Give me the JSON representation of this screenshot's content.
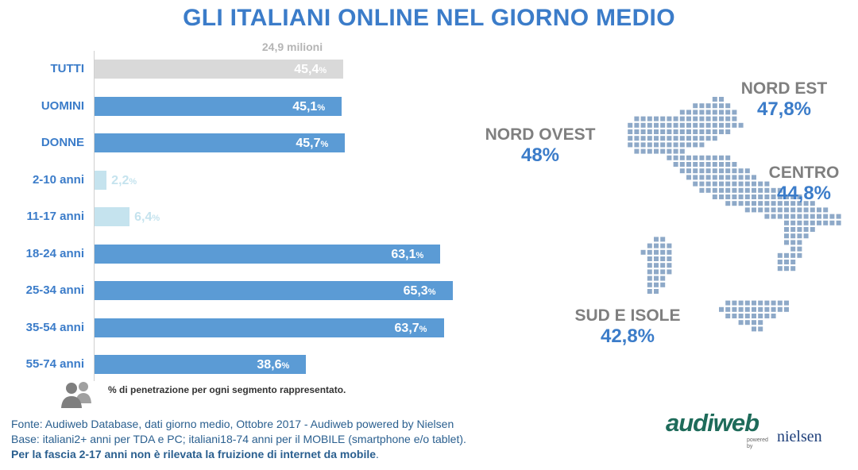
{
  "title": "GLI ITALIANI ONLINE NEL GIORNO MEDIO",
  "total_label": "24,9 milioni",
  "chart_data": {
    "type": "bar",
    "orientation": "horizontal",
    "categories": [
      "TUTTI",
      "UOMINI",
      "DONNE",
      "2-10 anni",
      "11-17 anni",
      "18-24 anni",
      "25-34 anni",
      "35-54 anni",
      "55-74 anni"
    ],
    "values": [
      45.4,
      45.1,
      45.7,
      2.2,
      6.4,
      63.1,
      65.3,
      63.7,
      38.6
    ],
    "value_labels": [
      "45,4",
      "45,1",
      "45,7",
      "2,2",
      "6,4",
      "63,1",
      "65,3",
      "63,7",
      "38,6"
    ],
    "unit": "%",
    "colors": [
      "#d9d9d9",
      "#5b9bd5",
      "#5b9bd5",
      "#c5e3ee",
      "#c5e3ee",
      "#5b9bd5",
      "#5b9bd5",
      "#5b9bd5",
      "#5b9bd5"
    ],
    "xlim": [
      0,
      100
    ],
    "grid": false,
    "legend": "none"
  },
  "note": "% di penetrazione per ogni segmento rappresentato.",
  "regions": [
    {
      "name": "NORD OVEST",
      "value": "48%"
    },
    {
      "name": "NORD EST",
      "value": "47,8%"
    },
    {
      "name": "CENTRO",
      "value": "44,8%"
    },
    {
      "name": "SUD E ISOLE",
      "value": "42,8%"
    }
  ],
  "footer": {
    "line1": "Fonte: Audiweb Database, dati giorno medio, Ottobre 2017 - Audiweb powered by Nielsen",
    "line2": "Base: italiani2+ anni per TDA e PC; italiani18-74 anni per il MOBILE (smartphone e/o tablet).",
    "line3_bold": "Per la fascia 2-17 anni non è rilevata la fruizione di internet da mobile",
    "line3_end": "."
  },
  "logo": {
    "brand": "audiweb",
    "powered": "powered",
    "by": "by",
    "partner": "nielsen"
  },
  "colors": {
    "accent": "#3b7cc9",
    "bar": "#5b9bd5",
    "bar_total": "#d9d9d9",
    "bar_young": "#c5e3ee",
    "map_dots": "#8ea9c8"
  }
}
